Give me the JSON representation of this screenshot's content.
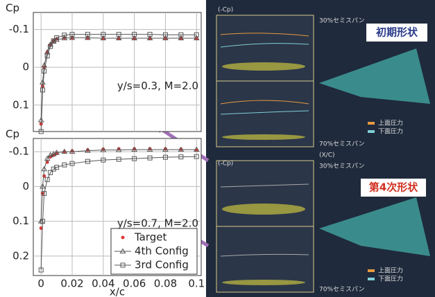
{
  "chart_data": [
    {
      "type": "line",
      "ylabel": "Cp",
      "annotation": "y/s=0.3, M=2.0",
      "xlim": [
        -0.005,
        0.103
      ],
      "xticks": [
        0,
        0.02,
        0.04,
        0.06,
        0.08,
        0.1
      ],
      "xtick_labels": false,
      "ylim": [
        -0.145,
        0.17
      ],
      "yticks": [
        -0.1,
        0,
        0.1
      ],
      "y_inverted": true,
      "grid": true,
      "x": [
        0,
        0.001,
        0.002,
        0.004,
        0.006,
        0.008,
        0.01,
        0.015,
        0.02,
        0.03,
        0.04,
        0.05,
        0.06,
        0.07,
        0.08,
        0.09,
        0.1
      ],
      "series": [
        {
          "color": "#e03838",
          "marker": "circle",
          "line": false,
          "values": [
            0.15,
            0.05,
            0.0,
            -0.04,
            -0.06,
            -0.07,
            -0.075,
            -0.078,
            -0.078,
            -0.077,
            -0.076,
            -0.076,
            -0.076,
            -0.076,
            -0.076,
            -0.076,
            -0.076
          ]
        },
        {
          "color": "#555555",
          "marker": "triangle",
          "line": true,
          "values": [
            0.14,
            0.04,
            -0.005,
            -0.04,
            -0.06,
            -0.068,
            -0.073,
            -0.077,
            -0.078,
            -0.078,
            -0.077,
            -0.077,
            -0.077,
            -0.077,
            -0.077,
            -0.077,
            -0.077
          ]
        },
        {
          "color": "#555555",
          "marker": "square",
          "line": true,
          "values": [
            0.17,
            0.06,
            0.01,
            -0.03,
            -0.055,
            -0.07,
            -0.078,
            -0.085,
            -0.087,
            -0.087,
            -0.087,
            -0.087,
            -0.087,
            -0.087,
            -0.086,
            -0.086,
            -0.086
          ]
        }
      ]
    },
    {
      "type": "line",
      "ylabel": "Cp",
      "xlabel": "x/c",
      "annotation": "y/s=0.7, M=2.0",
      "xlim": [
        -0.005,
        0.103
      ],
      "xticks": [
        0,
        0.02,
        0.04,
        0.06,
        0.08,
        0.1
      ],
      "xtick_labels": true,
      "ylim": [
        -0.138,
        0.256
      ],
      "yticks": [
        -0.1,
        0,
        0.1,
        0.2
      ],
      "y_inverted": true,
      "grid": true,
      "legend": "lower right",
      "x": [
        0,
        0.001,
        0.002,
        0.004,
        0.006,
        0.008,
        0.01,
        0.015,
        0.02,
        0.03,
        0.04,
        0.05,
        0.06,
        0.07,
        0.08,
        0.09,
        0.1
      ],
      "series": [
        {
          "name": "Target",
          "color": "#e03838",
          "marker": "circle",
          "line": false,
          "values": [
            0.12,
            0.02,
            -0.03,
            -0.07,
            -0.085,
            -0.09,
            -0.095,
            -0.1,
            -0.102,
            -0.105,
            -0.107,
            -0.108,
            -0.108,
            -0.108,
            -0.108,
            -0.107,
            -0.105
          ]
        },
        {
          "name": "4th Config",
          "color": "#555555",
          "marker": "triangle",
          "line": true,
          "values": [
            0.1,
            0.0,
            -0.05,
            -0.08,
            -0.09,
            -0.093,
            -0.097,
            -0.1,
            -0.1,
            -0.103,
            -0.105,
            -0.105,
            -0.106,
            -0.106,
            -0.106,
            -0.106,
            -0.106
          ]
        },
        {
          "name": "3rd Config",
          "color": "#555555",
          "marker": "square",
          "line": true,
          "values": [
            0.24,
            0.1,
            0.02,
            -0.02,
            -0.04,
            -0.05,
            -0.055,
            -0.062,
            -0.066,
            -0.072,
            -0.076,
            -0.078,
            -0.08,
            -0.082,
            -0.084,
            -0.085,
            -0.086
          ]
        }
      ]
    }
  ],
  "right_panel": {
    "initial": "初期形状",
    "fourth": "第4次形状",
    "cp_label_1": "(-Cp)",
    "cp_label_2": "(-Cp)",
    "xc_label": "(X/C)",
    "span30_a": "30%セミスパン",
    "span70_a": "70%セミスパン",
    "span30_b": "30%セミスパン",
    "span70_b": "70%セミスパン",
    "upper_a": "上面圧力",
    "lower_a": "下面圧力",
    "upper_b": "上面圧力",
    "lower_b": "下面圧力"
  }
}
